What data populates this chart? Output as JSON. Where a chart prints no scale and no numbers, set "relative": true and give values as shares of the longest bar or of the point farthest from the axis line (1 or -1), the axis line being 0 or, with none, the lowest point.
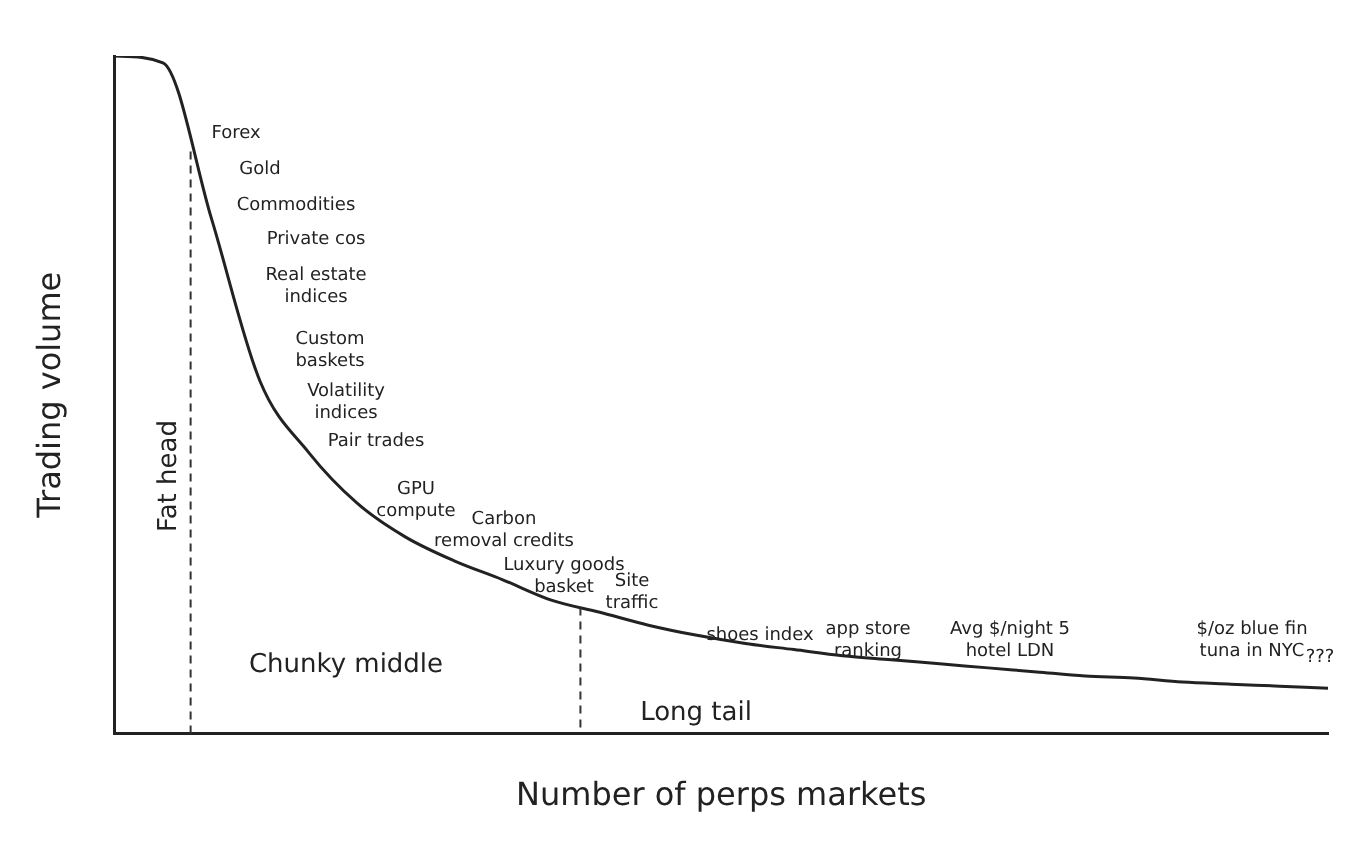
{
  "chart_data": {
    "type": "line",
    "relative": true,
    "xlabel": "Number of perps markets",
    "ylabel": "Trading volume",
    "color": "#222222",
    "marker": "none",
    "grid": false,
    "legend": false,
    "categories": [
      null,
      null,
      null,
      null,
      null,
      null,
      null,
      null,
      null,
      null,
      null,
      null,
      null,
      null,
      null,
      null,
      null,
      null,
      null,
      null,
      null,
      null,
      null,
      null,
      null,
      null
    ],
    "values": [
      1.0,
      0.99,
      0.76,
      0.52,
      0.415,
      0.34,
      0.29,
      0.255,
      0.227,
      0.197,
      0.179,
      0.16,
      0.145,
      0.133,
      0.124,
      0.115,
      0.109,
      0.103,
      0.097,
      0.091,
      0.085,
      0.082,
      0.076,
      0.073,
      0.07,
      0.067
    ],
    "annotations": [
      "Forex",
      "Gold",
      "Commodities",
      "Private cos",
      "Real estate indices",
      "Custom baskets",
      "Volatility indices",
      "Pair trades",
      "GPU compute",
      "Carbon removal credits",
      "Luxury goods basket",
      "Site traffic",
      "shoes index",
      "app store ranking",
      "Avg $/night 5 hotel LDN",
      "$/oz blue fin tuna in NYC",
      "???",
      "Fat head",
      "Chunky middle",
      "Long tail"
    ]
  }
}
